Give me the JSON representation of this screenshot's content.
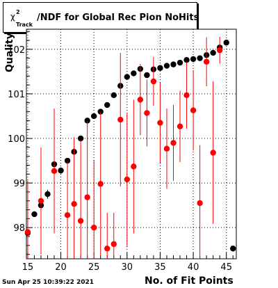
{
  "title": {
    "prefix": "χ",
    "superscript": "2",
    "subscript": "Track",
    "text": "/NDF for Global Rec Pion NoHits"
  },
  "timestamp": "Sun Apr 25 10:39:22 2021",
  "chart_data": {
    "type": "scatter",
    "xlabel": "No. of Fit Points",
    "ylabel": "Quality",
    "xlim": [
      14.8,
      46.5
    ],
    "ylim": [
      97.3,
      102.45
    ],
    "x_ticks": [
      15,
      20,
      25,
      30,
      35,
      40,
      45
    ],
    "y_ticks": [
      98,
      99,
      100,
      101,
      102
    ],
    "grid": true,
    "series": [
      {
        "color": "#000000",
        "points": [
          {
            "x": 15,
            "y": 97.88,
            "err": 0.05
          },
          {
            "x": 16,
            "y": 98.3,
            "err": 0.05
          },
          {
            "x": 17,
            "y": 98.5,
            "err": 0.07
          },
          {
            "x": 18,
            "y": 98.75,
            "err": 0.1
          },
          {
            "x": 19,
            "y": 99.42,
            "err": 0.05
          },
          {
            "x": 20,
            "y": 99.28,
            "err": 0.07
          },
          {
            "x": 21,
            "y": 99.5,
            "err": 0.06
          },
          {
            "x": 22,
            "y": 99.7,
            "err": 0.05
          },
          {
            "x": 23,
            "y": 100.0,
            "err": 0.06
          },
          {
            "x": 24,
            "y": 100.4,
            "err": 0.06
          },
          {
            "x": 25,
            "y": 100.5,
            "err": 0.05
          },
          {
            "x": 26,
            "y": 100.6,
            "err": 0.05
          },
          {
            "x": 27,
            "y": 100.75,
            "err": 0.04
          },
          {
            "x": 28,
            "y": 100.97,
            "err": 0.04
          },
          {
            "x": 29,
            "y": 101.18,
            "err": 0.04
          },
          {
            "x": 30,
            "y": 101.38,
            "err": 0.04
          },
          {
            "x": 31,
            "y": 101.46,
            "err": 0.04
          },
          {
            "x": 32,
            "y": 101.56,
            "err": 0.03
          },
          {
            "x": 33,
            "y": 101.42,
            "err": 0.03
          },
          {
            "x": 34,
            "y": 101.55,
            "err": 0.03
          },
          {
            "x": 35,
            "y": 101.58,
            "err": 0.03
          },
          {
            "x": 36,
            "y": 101.63,
            "err": 0.03
          },
          {
            "x": 37,
            "y": 101.66,
            "err": 0.03
          },
          {
            "x": 38,
            "y": 101.7,
            "err": 0.03
          },
          {
            "x": 39,
            "y": 101.76,
            "err": 0.03
          },
          {
            "x": 40,
            "y": 101.78,
            "err": 0.03
          },
          {
            "x": 41,
            "y": 101.8,
            "err": 0.03
          },
          {
            "x": 42,
            "y": 101.87,
            "err": 0.03
          },
          {
            "x": 43,
            "y": 101.92,
            "err": 0.03
          },
          {
            "x": 44,
            "y": 102.04,
            "err": 0.03
          },
          {
            "x": 45,
            "y": 102.15,
            "err": 0.03
          },
          {
            "x": 46,
            "y": 97.53,
            "err": 0.03
          }
        ]
      },
      {
        "color": "#ff0000",
        "points": [
          {
            "x": 15,
            "y": 97.9,
            "err": 1.15
          },
          {
            "x": 17,
            "y": 98.6,
            "err": 1.2
          },
          {
            "x": 19,
            "y": 99.27,
            "err": 1.4
          },
          {
            "x": 21,
            "y": 98.28,
            "err": 1.2
          },
          {
            "x": 22,
            "y": 98.53,
            "err": 1.5
          },
          {
            "x": 23,
            "y": 98.15,
            "err": 1.8
          },
          {
            "x": 24,
            "y": 98.68,
            "err": 1.7
          },
          {
            "x": 25,
            "y": 98.0,
            "err": 1.5
          },
          {
            "x": 26,
            "y": 98.98,
            "err": 1.6
          },
          {
            "x": 27,
            "y": 97.53,
            "err": 0.8
          },
          {
            "x": 28,
            "y": 97.63,
            "err": 0.7
          },
          {
            "x": 29,
            "y": 100.42,
            "err": 1.5
          },
          {
            "x": 30,
            "y": 99.08,
            "err": 1.5
          },
          {
            "x": 31,
            "y": 99.37,
            "err": 1.5
          },
          {
            "x": 32,
            "y": 100.87,
            "err": 0.8
          },
          {
            "x": 33,
            "y": 100.57,
            "err": 0.75
          },
          {
            "x": 34,
            "y": 101.28,
            "err": 0.55
          },
          {
            "x": 35,
            "y": 100.35,
            "err": 0.9
          },
          {
            "x": 36,
            "y": 99.77,
            "err": 0.9
          },
          {
            "x": 37,
            "y": 99.9,
            "err": 0.85
          },
          {
            "x": 38,
            "y": 100.27,
            "err": 0.8
          },
          {
            "x": 39,
            "y": 100.97,
            "err": 0.75
          },
          {
            "x": 40,
            "y": 100.63,
            "err": 0.9
          },
          {
            "x": 41,
            "y": 98.55,
            "err": 1.3
          },
          {
            "x": 42,
            "y": 101.72,
            "err": 0.55
          },
          {
            "x": 43,
            "y": 99.68,
            "err": 1.6
          },
          {
            "x": 44,
            "y": 101.98,
            "err": 0.3
          }
        ]
      }
    ]
  }
}
